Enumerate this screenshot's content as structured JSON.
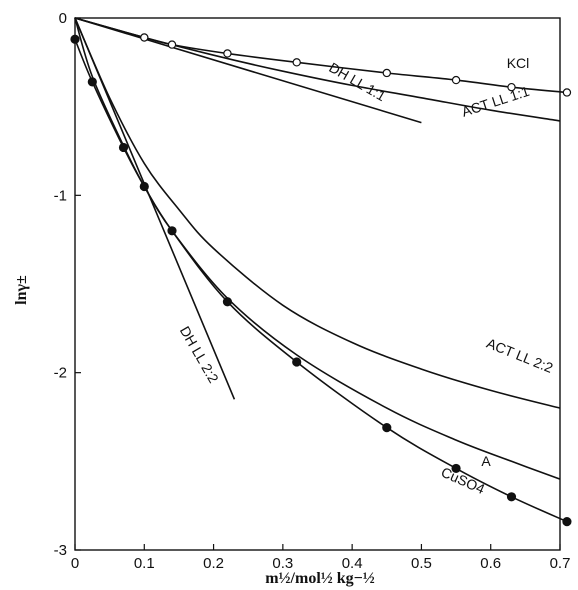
{
  "chart_data": {
    "type": "line",
    "xlabel": "m½/mol½ kg−½",
    "ylabel": "lnγ±",
    "xlim": [
      0,
      0.7
    ],
    "ylim": [
      -3,
      0
    ],
    "x_ticks": [
      {
        "value": 0,
        "label": "0"
      },
      {
        "value": 0.1,
        "label": "0.1"
      },
      {
        "value": 0.2,
        "label": "0.2"
      },
      {
        "value": 0.3,
        "label": "0.3"
      },
      {
        "value": 0.4,
        "label": "0.4"
      },
      {
        "value": 0.5,
        "label": "0.5"
      },
      {
        "value": 0.6,
        "label": "0.6"
      },
      {
        "value": 0.7,
        "label": "0.7"
      }
    ],
    "y_ticks": [
      {
        "value": 0,
        "label": "0"
      },
      {
        "value": -1,
        "label": "-1"
      },
      {
        "value": -2,
        "label": "-2"
      },
      {
        "value": -3,
        "label": "-3"
      }
    ],
    "grid": false,
    "series": [
      {
        "name": "KCl",
        "markers": "open-circle",
        "x": [
          0,
          0.1,
          0.14,
          0.22,
          0.32,
          0.45,
          0.55,
          0.63,
          0.71
        ],
        "y": [
          0,
          -0.11,
          -0.15,
          -0.2,
          -0.25,
          -0.31,
          -0.35,
          -0.39,
          -0.42
        ],
        "points": [
          {
            "x": 0.1,
            "y": -0.11
          },
          {
            "x": 0.14,
            "y": -0.15
          },
          {
            "x": 0.22,
            "y": -0.2
          },
          {
            "x": 0.32,
            "y": -0.25
          },
          {
            "x": 0.45,
            "y": -0.31
          },
          {
            "x": 0.55,
            "y": -0.35
          },
          {
            "x": 0.63,
            "y": -0.39
          },
          {
            "x": 0.71,
            "y": -0.42
          }
        ]
      },
      {
        "name": "DH LL 1:1",
        "x": [
          0,
          0.5
        ],
        "y": [
          0,
          -0.59
        ]
      },
      {
        "name": "ACT LL 1:1",
        "x": [
          0,
          0.1,
          0.2,
          0.3,
          0.4,
          0.5,
          0.6,
          0.7
        ],
        "y": [
          0,
          -0.11,
          -0.21,
          -0.3,
          -0.38,
          -0.45,
          -0.52,
          -0.58
        ]
      },
      {
        "name": "ACT LL 2:2",
        "x": [
          0,
          0.05,
          0.1,
          0.15,
          0.2,
          0.3,
          0.4,
          0.5,
          0.6,
          0.7
        ],
        "y": [
          0,
          -0.45,
          -0.82,
          -1.08,
          -1.3,
          -1.62,
          -1.83,
          -1.98,
          -2.1,
          -2.2
        ]
      },
      {
        "name": "DH LL 2:2",
        "x": [
          0,
          0.23
        ],
        "y": [
          0,
          -2.15
        ]
      },
      {
        "name": "A",
        "x": [
          0,
          0.025,
          0.07,
          0.1,
          0.14,
          0.22,
          0.32,
          0.45,
          0.55,
          0.63,
          0.7
        ],
        "y": [
          0,
          -0.33,
          -0.72,
          -0.95,
          -1.2,
          -1.58,
          -1.9,
          -2.2,
          -2.38,
          -2.5,
          -2.6
        ]
      },
      {
        "name": "CuSO4",
        "markers": "filled-circle",
        "x": [
          0,
          0.025,
          0.07,
          0.1,
          0.14,
          0.22,
          0.32,
          0.45,
          0.55,
          0.63,
          0.71
        ],
        "y": [
          -0.12,
          -0.36,
          -0.73,
          -0.95,
          -1.2,
          -1.6,
          -1.94,
          -2.31,
          -2.54,
          -2.7,
          -2.84
        ],
        "points": [
          {
            "x": 0,
            "y": -0.12
          },
          {
            "x": 0.025,
            "y": -0.36
          },
          {
            "x": 0.07,
            "y": -0.73
          },
          {
            "x": 0.1,
            "y": -0.95
          },
          {
            "x": 0.14,
            "y": -1.2
          },
          {
            "x": 0.22,
            "y": -1.6
          },
          {
            "x": 0.32,
            "y": -1.94
          },
          {
            "x": 0.45,
            "y": -2.31
          },
          {
            "x": 0.55,
            "y": -2.54
          },
          {
            "x": 0.63,
            "y": -2.7
          },
          {
            "x": 0.71,
            "y": -2.84
          }
        ]
      }
    ],
    "labels": {
      "kcl": "KCl",
      "dh_ll_11": "DH LL 1:1",
      "act_ll_11": "ACT LL 1:1",
      "act_ll_22": "ACT LL 2:2",
      "dh_ll_22": "DH LL 2:2",
      "a": "A",
      "cuso4": "CuSO4"
    }
  }
}
